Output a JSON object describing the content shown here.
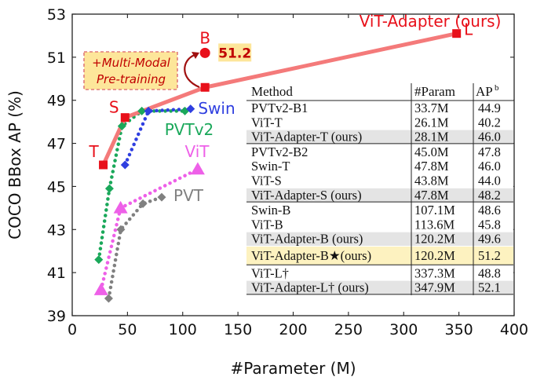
{
  "chart_data": {
    "type": "scatter",
    "xlabel": "#Parameter (M)",
    "ylabel": "COCO BBox AP (%)",
    "xlim": [
      0,
      400
    ],
    "ylim": [
      39,
      53
    ],
    "xticks": [
      0,
      50,
      100,
      150,
      200,
      250,
      300,
      350,
      400
    ],
    "yticks": [
      39,
      41,
      43,
      45,
      47,
      49,
      51,
      53
    ],
    "grid": false,
    "series": [
      {
        "name": "ViT-Adapter (ours)",
        "color": "#f47a7a",
        "marker": "square",
        "marker_color": "#e8101a",
        "style": "solid",
        "points": [
          [
            28.1,
            46.0
          ],
          [
            47.8,
            48.2
          ],
          [
            120.2,
            49.6
          ],
          [
            347.9,
            52.1
          ]
        ],
        "point_labels": [
          "T",
          "S",
          "",
          "L"
        ]
      },
      {
        "name": "Swin",
        "color": "#2f3fe0",
        "marker": "diamond",
        "style": "dotted",
        "points": [
          [
            47.8,
            46.0
          ],
          [
            69,
            48.5
          ],
          [
            107.1,
            48.6
          ]
        ]
      },
      {
        "name": "PVTv2",
        "color": "#1aa85a",
        "marker": "diamond",
        "style": "dotted",
        "points": [
          [
            24,
            41.6
          ],
          [
            33.7,
            44.9
          ],
          [
            45.0,
            47.8
          ],
          [
            63,
            48.5
          ],
          [
            102,
            48.5
          ]
        ]
      },
      {
        "name": "ViT",
        "color": "#ee60e8",
        "marker": "triangle",
        "style": "dotted",
        "points": [
          [
            26.1,
            40.2
          ],
          [
            43.8,
            44.0
          ],
          [
            113.6,
            45.8
          ]
        ]
      },
      {
        "name": "PVT",
        "color": "#808080",
        "marker": "diamond",
        "style": "dotted",
        "points": [
          [
            33,
            39.8
          ],
          [
            44,
            43.0
          ],
          [
            64,
            44.2
          ],
          [
            81,
            44.5
          ]
        ]
      }
    ],
    "highlight_point": {
      "label": "B",
      "x": 120.2,
      "y": 51.2,
      "value_label": "51.2",
      "color": "#e8101a"
    },
    "annotation": {
      "line1": "+Multi-Modal",
      "line2": "Pre-training"
    },
    "table": {
      "headers": [
        "Method",
        "#Param",
        "AP",
        "b"
      ],
      "groups": [
        [
          [
            "PVTv2-B1",
            "33.7M",
            "44.9",
            false
          ],
          [
            "ViT-T",
            "26.1M",
            "40.2",
            false
          ],
          [
            "ViT-Adapter-T (ours)",
            "28.1M",
            "46.0",
            true
          ]
        ],
        [
          [
            "PVTv2-B2",
            "45.0M",
            "47.8",
            false
          ],
          [
            "Swin-T",
            "47.8M",
            "46.0",
            false
          ],
          [
            "ViT-S",
            "43.8M",
            "44.0",
            false
          ],
          [
            "ViT-Adapter-S (ours)",
            "47.8M",
            "48.2",
            true
          ]
        ],
        [
          [
            "Swin-B",
            "107.1M",
            "48.6",
            false
          ],
          [
            "ViT-B",
            "113.6M",
            "45.8",
            false
          ],
          [
            "ViT-Adapter-B (ours)",
            "120.2M",
            "49.6",
            true
          ],
          [
            "ViT-Adapter-B★(ours)",
            "120.2M",
            "51.2",
            "yellow"
          ]
        ],
        [
          [
            "ViT-L†",
            "337.3M",
            "48.8",
            false
          ],
          [
            "ViT-Adapter-L† (ours)",
            "347.9M",
            "52.1",
            true
          ]
        ]
      ]
    }
  }
}
